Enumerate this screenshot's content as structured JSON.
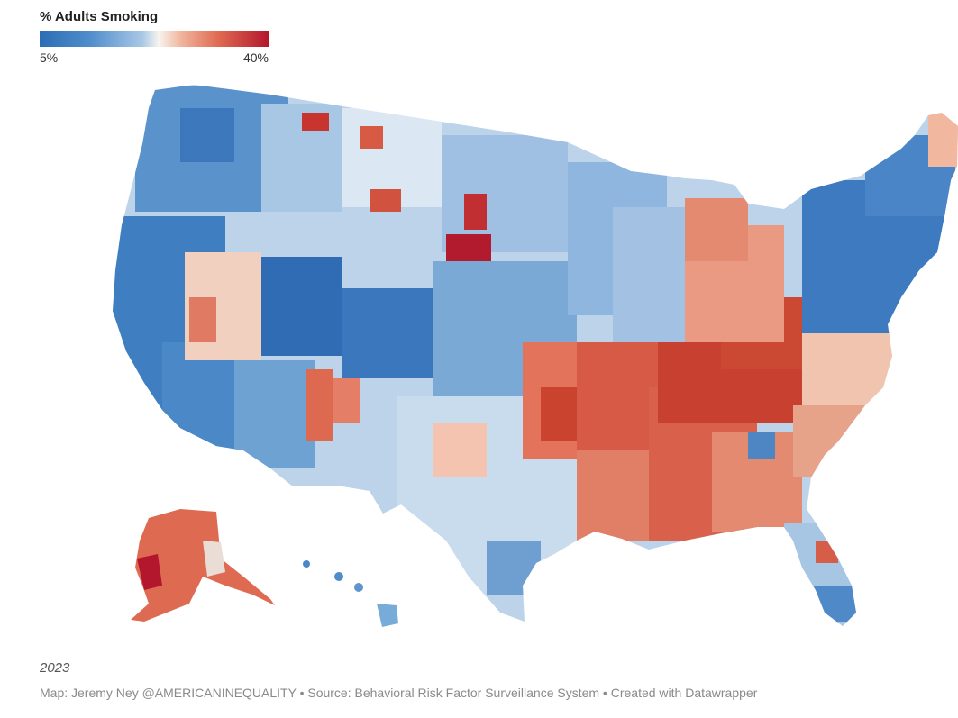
{
  "legend": {
    "title": "% Adults Smoking",
    "min_label": "5%",
    "max_label": "40%",
    "colors": [
      "#2c6db5",
      "#4f8dcb",
      "#a9c8e6",
      "#f7f4ee",
      "#f0b49b",
      "#e06a52",
      "#b3172d"
    ]
  },
  "footer": {
    "year": "2023",
    "credit": "Map: Jeremy Ney @AMERICANINEQUALITY • Source: Behavioral Risk Factor Surveillance System • Created with Datawrapper"
  }
}
